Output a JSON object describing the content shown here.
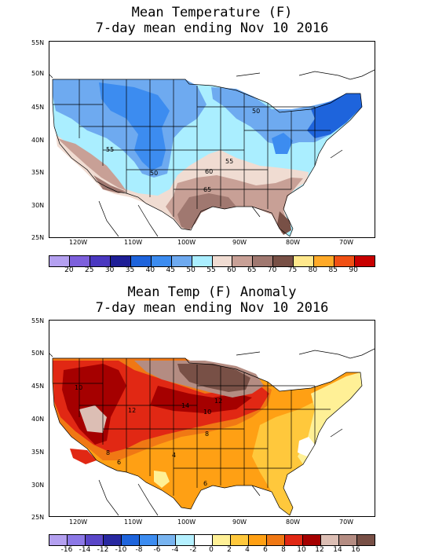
{
  "map1": {
    "title_line1": "Mean Temperature (F)",
    "title_line2": "7-day mean ending Nov 10 2016",
    "lat_labels": [
      "55N",
      "50N",
      "45N",
      "40N",
      "35N",
      "30N",
      "25N"
    ],
    "lon_labels": [
      "120W",
      "110W",
      "100W",
      "90W",
      "80W",
      "70W"
    ],
    "contour_labels": [
      "50",
      "55",
      "50",
      "55",
      "60",
      "65"
    ],
    "legend_labels": [
      "20",
      "25",
      "30",
      "35",
      "40",
      "45",
      "50",
      "55",
      "60",
      "65",
      "70",
      "75",
      "80",
      "85",
      "90"
    ],
    "legend_colors": [
      "#b4a0f0",
      "#7d60dc",
      "#4a38c0",
      "#1e1e96",
      "#1e64dc",
      "#3c8cf0",
      "#6eaaf0",
      "#aaeeff",
      "#f0dcd2",
      "#c8a096",
      "#a07870",
      "#785046",
      "#ffe88c",
      "#ffaa28",
      "#f05014",
      "#c80000"
    ]
  },
  "map2": {
    "title_line1": "Mean Temp (F) Anomaly",
    "title_line2": "7-day mean ending Nov 10 2016",
    "lat_labels": [
      "55N",
      "50N",
      "45N",
      "40N",
      "35N",
      "30N",
      "25N"
    ],
    "lon_labels": [
      "120W",
      "110W",
      "100W",
      "90W",
      "80W",
      "70W"
    ],
    "contour_labels": [
      "10",
      "12",
      "14",
      "12",
      "10",
      "8",
      "4",
      "6",
      "8",
      "6"
    ],
    "legend_labels": [
      "-16",
      "-14",
      "-12",
      "-10",
      "-8",
      "-6",
      "-4",
      "-2",
      "0",
      "2",
      "4",
      "6",
      "8",
      "10",
      "12",
      "14",
      "16"
    ],
    "legend_colors": [
      "#b4a0f0",
      "#8c78e6",
      "#5a46c8",
      "#2828a0",
      "#1e64dc",
      "#3c8cf0",
      "#78b4f0",
      "#b4f0ff",
      "#ffffff",
      "#fff096",
      "#ffc83c",
      "#ffa014",
      "#f07814",
      "#e12814",
      "#a50000",
      "#dcbeb4",
      "#b48c82",
      "#785046"
    ]
  }
}
